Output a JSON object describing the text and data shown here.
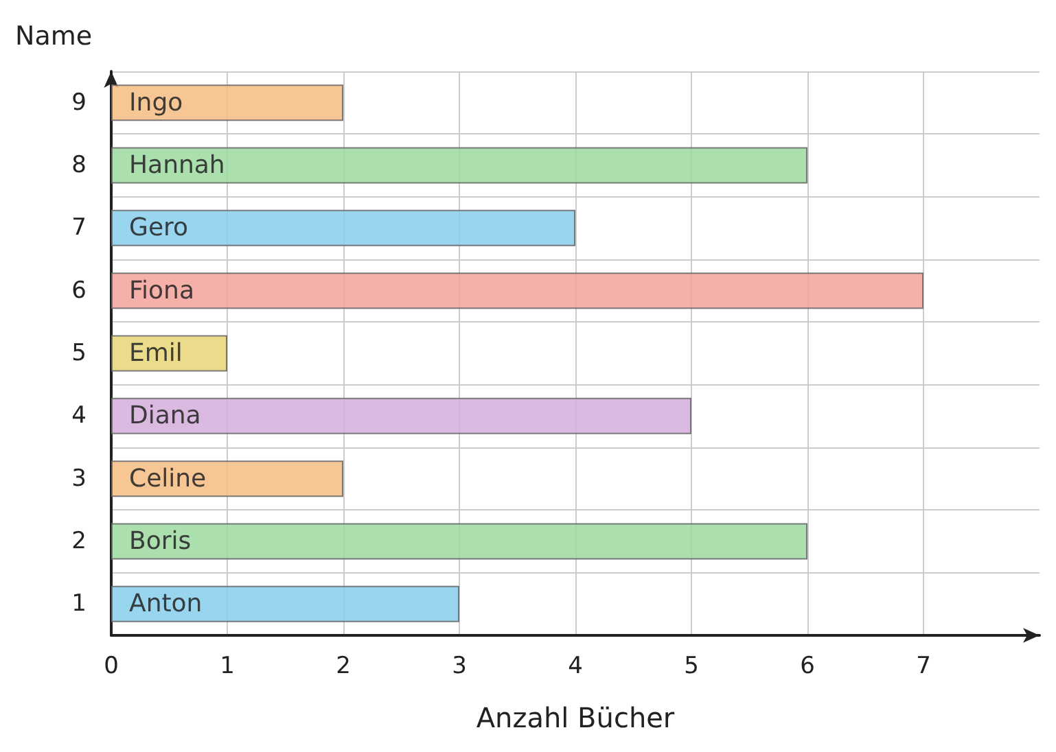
{
  "chart_data": {
    "type": "bar",
    "orientation": "horizontal",
    "xlabel": "Anzahl Bücher",
    "ylabel": "Name",
    "categories": [
      "9",
      "8",
      "7",
      "6",
      "5",
      "4",
      "3",
      "2",
      "1"
    ],
    "values": [
      2,
      6,
      4,
      7,
      1,
      5,
      2,
      6,
      3
    ],
    "value_labels": [
      "Ingo",
      "Hannah",
      "Gero",
      "Fiona",
      "Emil",
      "Diana",
      "Celine",
      "Boris",
      "Anton"
    ],
    "colors": [
      "#f5bc82",
      "#9dd9a0",
      "#87ceeb",
      "#f4a29b",
      "#e8d677",
      "#d4aedb",
      "#f5bc82",
      "#9dd9a0",
      "#87ceeb"
    ],
    "xlim": [
      0,
      8
    ],
    "xticks": [
      0,
      1,
      2,
      3,
      4,
      5,
      6,
      7
    ],
    "grid": true
  }
}
